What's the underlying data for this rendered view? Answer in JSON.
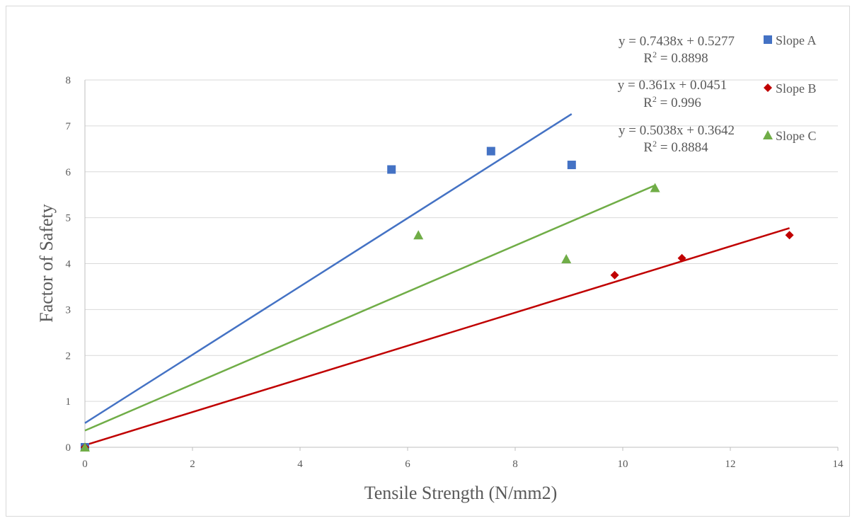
{
  "chart_data": {
    "type": "scatter",
    "xlabel": "Tensile Strength (N/mm2)",
    "ylabel": "Factor of Safety",
    "xlim": [
      0,
      14
    ],
    "ylim": [
      0,
      8
    ],
    "x_ticks": [
      0,
      2,
      4,
      6,
      8,
      10,
      12,
      14
    ],
    "y_ticks": [
      0,
      1,
      2,
      3,
      4,
      5,
      6,
      7,
      8
    ],
    "grid": "horizontal",
    "legend_position": "top-right",
    "series": [
      {
        "name": "Slope A",
        "color": "#4472c4",
        "marker": "square",
        "points": [
          [
            0,
            0
          ],
          [
            5.7,
            6.05
          ],
          [
            7.55,
            6.45
          ],
          [
            9.05,
            6.15
          ]
        ],
        "trendline": {
          "slope": 0.7438,
          "intercept": 0.5277,
          "x_range": [
            0,
            9.05
          ],
          "equation": "y = 0.7438x + 0.5277",
          "r2_label": "R",
          "r2_sup": "2",
          "r2_value": " = 0.8898"
        }
      },
      {
        "name": "Slope B",
        "color": "#c00000",
        "marker": "diamond",
        "points": [
          [
            0,
            0
          ],
          [
            9.85,
            3.75
          ],
          [
            11.1,
            4.12
          ],
          [
            13.1,
            4.62
          ]
        ],
        "trendline": {
          "slope": 0.361,
          "intercept": 0.0451,
          "x_range": [
            0,
            13.1
          ],
          "equation": "y = 0.361x + 0.0451",
          "r2_label": "R",
          "r2_sup": "2",
          "r2_value": " = 0.996"
        }
      },
      {
        "name": "Slope C",
        "color": "#70ad47",
        "marker": "triangle",
        "points": [
          [
            0,
            0
          ],
          [
            6.2,
            4.62
          ],
          [
            8.95,
            4.1
          ],
          [
            10.6,
            5.65
          ]
        ],
        "trendline": {
          "slope": 0.5038,
          "intercept": 0.3642,
          "x_range": [
            0,
            10.6
          ],
          "equation": "y = 0.5038x + 0.3642",
          "r2_label": "R",
          "r2_sup": "2",
          "r2_value": " = 0.8884"
        }
      }
    ]
  }
}
